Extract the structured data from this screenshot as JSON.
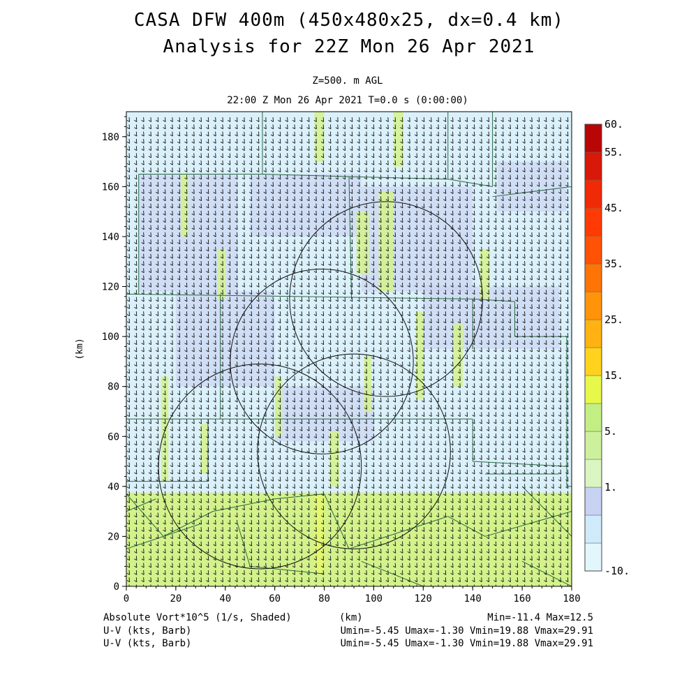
{
  "title_line1": "CASA DFW 400m (450x480x25, dx=0.4 km)",
  "title_line2": "Analysis for 22Z Mon 26 Apr 2021",
  "subtitle_line1": "Z=500. m AGL",
  "subtitle_line2": "22:00 Z Mon 26 Apr 2021   T=0.0 s (0:00:00)",
  "footer": {
    "field_label": "Absolute Vort*10^5 (1/s, Shaded)",
    "xunit": "(km)",
    "minmax": "Min=-11.4 Max=12.5",
    "barb1_label": "U-V (kts, Barb)",
    "barb1_stats": "Umin=-5.45 Umax=-1.30 Vmin=19.88 Vmax=29.91",
    "barb2_label": "U-V (kts, Barb)",
    "barb2_stats": "Umin=-5.45 Umax=-1.30 Vmin=19.88 Vmax=29.91"
  },
  "colors": {
    "panel_bg": "#daf0fa",
    "light_green": "#d3f28c",
    "lavender": "#c8d0f0",
    "county_line": "#2a6a42",
    "ring": "#111111",
    "barb": "#111111"
  },
  "chart_data": {
    "type": "heatmap",
    "xlabel": "(km)",
    "ylabel": "(km)",
    "xlim": [
      0,
      180
    ],
    "ylim": [
      0,
      190
    ],
    "xticks": [
      0,
      20,
      40,
      60,
      80,
      100,
      120,
      140,
      160,
      180
    ],
    "yticks": [
      0,
      20,
      40,
      60,
      80,
      100,
      120,
      140,
      160,
      180
    ],
    "field": "Absolute Vorticity x10^5 (1/s)",
    "colorbar": {
      "ticks": [
        "60.",
        "55.",
        "45.",
        "35.",
        "25.",
        "15.",
        "5.",
        "1.",
        "-10."
      ],
      "boundaries": [
        -10,
        -5,
        0,
        1,
        3,
        5,
        10,
        15,
        20,
        25,
        30,
        35,
        40,
        45,
        50,
        55,
        60
      ],
      "colors": [
        "#e2f6fb",
        "#cfeafa",
        "#c7d2f2",
        "#dbf5c2",
        "#cdf09c",
        "#c3ee84",
        "#e8f84a",
        "#ffd21e",
        "#ffb212",
        "#ff930a",
        "#ff7406",
        "#ff5204",
        "#ff3a04",
        "#f02a06",
        "#d81808",
        "#b80606"
      ]
    },
    "range_rings": [
      {
        "center_x": 54,
        "center_y": 48,
        "radius_km": 41
      },
      {
        "center_x": 79,
        "center_y": 90,
        "radius_km": 37
      },
      {
        "center_x": 105,
        "center_y": 115,
        "radius_km": 39
      },
      {
        "center_x": 92,
        "center_y": 54,
        "radius_km": 39
      }
    ],
    "wind": {
      "units": "kts",
      "u_range": [
        -5.45,
        -1.3
      ],
      "v_range": [
        19.88,
        29.91
      ]
    },
    "value_range": {
      "min": -11.4,
      "max": 12.5
    }
  }
}
